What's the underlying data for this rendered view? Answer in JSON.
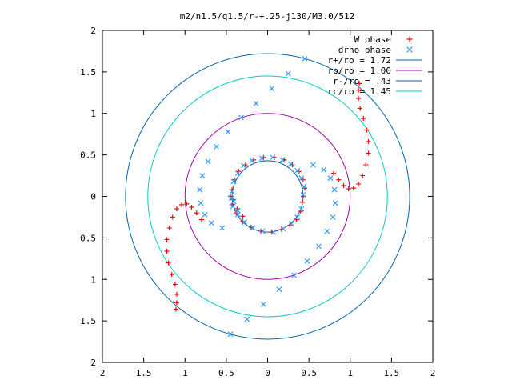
{
  "chart_data": {
    "type": "scatter",
    "title": "m2/n1.5/q1.5/r-+.25-j130/M3.0/512",
    "xlabel": "",
    "ylabel": "",
    "xlim": [
      -2,
      2
    ],
    "ylim": [
      -2,
      2
    ],
    "xticks": [
      -2,
      -1.5,
      -1,
      -0.5,
      0,
      0.5,
      1,
      1.5,
      2
    ],
    "yticks": [
      -2,
      -1.5,
      -1,
      -0.5,
      0,
      0.5,
      1,
      1.5,
      2
    ],
    "xtick_labels": [
      "2",
      "1.5",
      "1",
      "0.5",
      "0",
      "0.5",
      "1",
      "1.5",
      "2"
    ],
    "ytick_labels": [
      "2",
      "1.5",
      "1",
      "0.5",
      "0",
      "0.5",
      "1",
      "1.5",
      "2"
    ],
    "grid": false,
    "legend_position": "top-right",
    "series": [
      {
        "name": "W phase",
        "marker": "+",
        "color": "#ff0000",
        "points": [
          [
            0.43,
            0.0
          ],
          [
            0.45,
            0.1
          ],
          [
            0.43,
            0.2
          ],
          [
            0.38,
            0.3
          ],
          [
            0.3,
            0.38
          ],
          [
            0.2,
            0.44
          ],
          [
            0.08,
            0.47
          ],
          [
            -0.05,
            0.47
          ],
          [
            -0.17,
            0.44
          ],
          [
            -0.27,
            0.38
          ],
          [
            -0.35,
            0.3
          ],
          [
            -0.4,
            0.2
          ],
          [
            -0.43,
            0.08
          ],
          [
            -0.42,
            -0.04
          ],
          [
            -0.37,
            -0.15
          ],
          [
            -0.3,
            -0.24
          ],
          [
            -0.45,
            0.0
          ],
          [
            -0.43,
            -0.1
          ],
          [
            -0.38,
            -0.2
          ],
          [
            -0.3,
            -0.3
          ],
          [
            -0.2,
            -0.37
          ],
          [
            -0.08,
            -0.42
          ],
          [
            0.05,
            -0.43
          ],
          [
            0.17,
            -0.4
          ],
          [
            0.27,
            -0.35
          ],
          [
            0.35,
            -0.28
          ],
          [
            0.4,
            -0.18
          ],
          [
            0.42,
            -0.07
          ],
          [
            0.8,
            0.28
          ],
          [
            0.86,
            0.2
          ],
          [
            0.92,
            0.13
          ],
          [
            0.98,
            0.09
          ],
          [
            1.04,
            0.1
          ],
          [
            1.1,
            0.15
          ],
          [
            1.15,
            0.25
          ],
          [
            1.19,
            0.38
          ],
          [
            1.22,
            0.52
          ],
          [
            1.22,
            0.66
          ],
          [
            1.2,
            0.8
          ],
          [
            1.16,
            0.94
          ],
          [
            1.12,
            1.06
          ],
          [
            1.1,
            1.18
          ],
          [
            1.1,
            1.28
          ],
          [
            1.11,
            1.36
          ],
          [
            -0.8,
            -0.28
          ],
          [
            -0.86,
            -0.2
          ],
          [
            -0.92,
            -0.13
          ],
          [
            -0.98,
            -0.09
          ],
          [
            -1.04,
            -0.1
          ],
          [
            -1.1,
            -0.15
          ],
          [
            -1.15,
            -0.25
          ],
          [
            -1.19,
            -0.38
          ],
          [
            -1.22,
            -0.52
          ],
          [
            -1.22,
            -0.66
          ],
          [
            -1.2,
            -0.8
          ],
          [
            -1.16,
            -0.94
          ],
          [
            -1.12,
            -1.06
          ],
          [
            -1.1,
            -1.18
          ],
          [
            -1.1,
            -1.28
          ],
          [
            -1.11,
            -1.36
          ]
        ]
      },
      {
        "name": "drho phase",
        "marker": "x",
        "color": "#3399ff",
        "points": [
          [
            0.43,
            0.02
          ],
          [
            0.44,
            0.12
          ],
          [
            0.41,
            0.22
          ],
          [
            0.36,
            0.31
          ],
          [
            0.28,
            0.39
          ],
          [
            0.18,
            0.44
          ],
          [
            0.06,
            0.47
          ],
          [
            -0.07,
            0.46
          ],
          [
            -0.19,
            0.43
          ],
          [
            -0.29,
            0.37
          ],
          [
            -0.36,
            0.28
          ],
          [
            -0.41,
            0.18
          ],
          [
            -0.43,
            0.06
          ],
          [
            -0.41,
            -0.06
          ],
          [
            -0.36,
            -0.17
          ],
          [
            -0.44,
            -0.02
          ],
          [
            -0.42,
            -0.12
          ],
          [
            -0.36,
            -0.22
          ],
          [
            -0.28,
            -0.31
          ],
          [
            -0.18,
            -0.38
          ],
          [
            -0.06,
            -0.42
          ],
          [
            0.07,
            -0.43
          ],
          [
            0.19,
            -0.39
          ],
          [
            0.29,
            -0.33
          ],
          [
            0.36,
            -0.25
          ],
          [
            0.41,
            -0.15
          ],
          [
            0.55,
            0.38
          ],
          [
            0.68,
            0.32
          ],
          [
            0.76,
            0.22
          ],
          [
            0.81,
            0.08
          ],
          [
            0.82,
            -0.08
          ],
          [
            0.79,
            -0.25
          ],
          [
            0.72,
            -0.42
          ],
          [
            0.62,
            -0.6
          ],
          [
            0.48,
            -0.78
          ],
          [
            0.32,
            -0.95
          ],
          [
            0.14,
            -1.12
          ],
          [
            -0.05,
            -1.3
          ],
          [
            -0.25,
            -1.48
          ],
          [
            -0.45,
            -1.66
          ],
          [
            -0.55,
            -0.38
          ],
          [
            -0.68,
            -0.32
          ],
          [
            -0.76,
            -0.22
          ],
          [
            -0.81,
            -0.08
          ],
          [
            -0.82,
            0.08
          ],
          [
            -0.79,
            0.25
          ],
          [
            -0.72,
            0.42
          ],
          [
            -0.62,
            0.6
          ],
          [
            -0.48,
            0.78
          ],
          [
            -0.32,
            0.95
          ],
          [
            -0.14,
            1.12
          ],
          [
            0.05,
            1.3
          ],
          [
            0.25,
            1.48
          ],
          [
            0.45,
            1.66
          ]
        ]
      },
      {
        "name": "r+/ro = 1.72",
        "type": "circle",
        "radius": 1.72,
        "color": "#0066aa"
      },
      {
        "name": "ro/ro = 1.00",
        "type": "circle",
        "radius": 1.0,
        "color": "#aa00aa"
      },
      {
        "name": "r-/ro = .43",
        "type": "circle",
        "radius": 0.43,
        "color": "#0066aa"
      },
      {
        "name": "rc/ro = 1.45",
        "type": "circle",
        "radius": 1.45,
        "color": "#00cccc"
      }
    ]
  }
}
